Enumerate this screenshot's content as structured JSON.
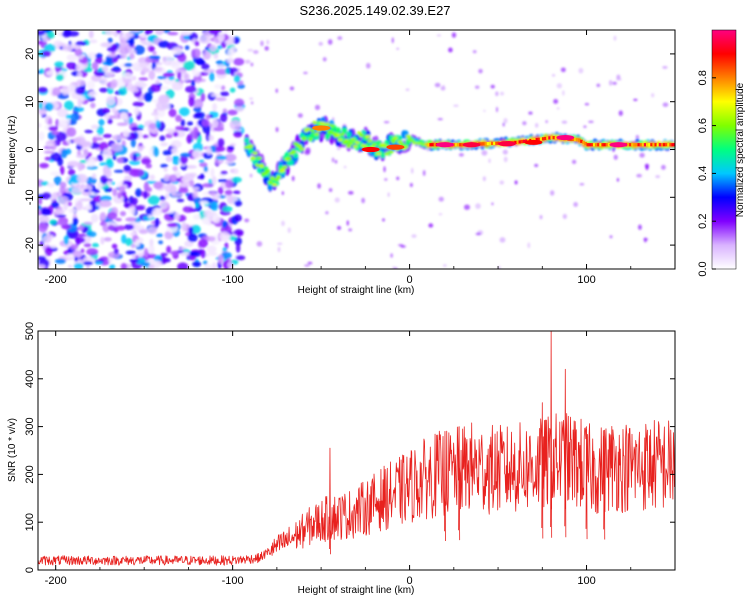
{
  "title": "S236.2025.149.02.39.E27",
  "chart_data": [
    {
      "type": "heatmap",
      "xlabel": "Height of straight line (km)",
      "ylabel": "Frequency (Hz)",
      "xlim": [
        -210,
        150
      ],
      "ylim": [
        -25,
        25
      ],
      "xticks": [
        -200,
        -100,
        0,
        100
      ],
      "yticks": [
        -20,
        -10,
        0,
        10,
        20
      ],
      "colorbar": {
        "label": "Normalized spectral amplitude",
        "range": [
          0,
          1
        ],
        "ticks": [
          "0.0",
          "0.2",
          "0.4",
          "0.6",
          "0.8"
        ],
        "colors": [
          "#ffffff",
          "#d9b3ff",
          "#8000ff",
          "#0000ff",
          "#00c8ff",
          "#00ff80",
          "#80ff00",
          "#ffff00",
          "#ff8000",
          "#ff0000",
          "#ff0080"
        ]
      },
      "regions": [
        {
          "x": [
            -210,
            -95
          ],
          "y": [
            -25,
            25
          ],
          "amplitude": 0.15,
          "pattern": "scattered noise"
        },
        {
          "x": [
            -95,
            -75
          ],
          "y": [
            -8,
            3
          ],
          "amplitude": 0.35,
          "pattern": "descending trace"
        },
        {
          "x": [
            -60,
            -15
          ],
          "y": [
            0,
            5
          ],
          "amplitude": 0.55,
          "pattern": "wavy trace"
        },
        {
          "x": [
            10,
            150
          ],
          "y": [
            0,
            2
          ],
          "amplitude": 0.95,
          "pattern": "steady line"
        }
      ],
      "ridge": [
        {
          "x": -92,
          "y": 1
        },
        {
          "x": -85,
          "y": -3
        },
        {
          "x": -78,
          "y": -7
        },
        {
          "x": -70,
          "y": -3
        },
        {
          "x": -62,
          "y": 1
        },
        {
          "x": -55,
          "y": 4
        },
        {
          "x": -48,
          "y": 4.5
        },
        {
          "x": -40,
          "y": 3
        },
        {
          "x": -33,
          "y": 2
        },
        {
          "x": -25,
          "y": 2
        },
        {
          "x": -18,
          "y": 0
        },
        {
          "x": -10,
          "y": 1
        },
        {
          "x": 0,
          "y": 2
        },
        {
          "x": 10,
          "y": 1
        },
        {
          "x": 30,
          "y": 1
        },
        {
          "x": 60,
          "y": 1.5
        },
        {
          "x": 80,
          "y": 2.5
        },
        {
          "x": 95,
          "y": 2
        },
        {
          "x": 100,
          "y": 1
        },
        {
          "x": 120,
          "y": 1
        },
        {
          "x": 150,
          "y": 1
        }
      ],
      "hotspots": [
        {
          "x": 20,
          "y": 1,
          "v": 1.0
        },
        {
          "x": 35,
          "y": 1,
          "v": 0.95
        },
        {
          "x": 55,
          "y": 1.2,
          "v": 0.95
        },
        {
          "x": 70,
          "y": 1.5,
          "v": 0.9
        },
        {
          "x": 88,
          "y": 2.5,
          "v": 1.0
        },
        {
          "x": 118,
          "y": 1,
          "v": 1.0
        },
        {
          "x": -22,
          "y": 0,
          "v": 0.9
        },
        {
          "x": -8,
          "y": 0.5,
          "v": 0.85
        },
        {
          "x": -50,
          "y": 4.5,
          "v": 0.8
        }
      ]
    },
    {
      "type": "line",
      "xlabel": "Height of straight line (km)",
      "ylabel": "SNR (10 * v/v)",
      "xlim": [
        -210,
        150
      ],
      "ylim": [
        0,
        500
      ],
      "xticks": [
        -200,
        -100,
        0,
        100
      ],
      "yticks": [
        0,
        100,
        200,
        300,
        400,
        500
      ],
      "series": [
        {
          "color": "#e8211e",
          "x": [
            -210,
            -180,
            -150,
            -120,
            -100,
            -85,
            -75,
            -65,
            -55,
            -45,
            -35,
            -25,
            -15,
            -5,
            5,
            15,
            25,
            35,
            45,
            55,
            65,
            75,
            85,
            95,
            105,
            115,
            125,
            135,
            150
          ],
          "y": [
            20,
            20,
            20,
            20,
            20,
            25,
            50,
            70,
            95,
            110,
            115,
            130,
            150,
            165,
            185,
            200,
            205,
            215,
            210,
            210,
            215,
            220,
            230,
            225,
            205,
            220,
            215,
            220,
            220
          ]
        }
      ],
      "peaks": [
        {
          "x": -45,
          "y": 255
        },
        {
          "x": 20,
          "y": 290
        },
        {
          "x": 28,
          "y": 300
        },
        {
          "x": 80,
          "y": 500
        },
        {
          "x": 75,
          "y": 350
        },
        {
          "x": 88,
          "y": 420
        },
        {
          "x": 100,
          "y": 300
        },
        {
          "x": 110,
          "y": 280
        }
      ]
    }
  ]
}
